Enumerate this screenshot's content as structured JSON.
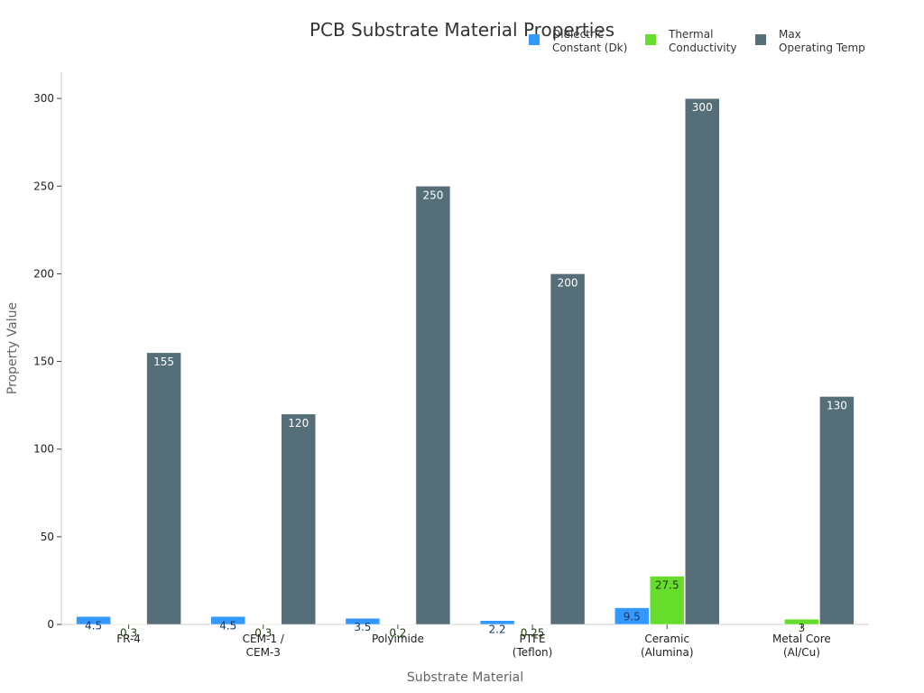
{
  "chart_data": {
    "type": "bar",
    "title": "PCB Substrate Material Properties",
    "xlabel": "Substrate Material",
    "ylabel": "Property Value",
    "ylim": [
      0,
      315
    ],
    "yticks": [
      0,
      50,
      100,
      150,
      200,
      250,
      300
    ],
    "ytick_labels": [
      "0",
      "50",
      "100",
      "150",
      "200",
      "250",
      "300"
    ],
    "grid": false,
    "legend_position": "top-right",
    "categories": [
      [
        "FR-4"
      ],
      [
        "CEM-1 /",
        "CEM-3"
      ],
      [
        "Polyimide"
      ],
      [
        "PTFE",
        "(Teflon)"
      ],
      [
        "Ceramic",
        "(Alumina)"
      ],
      [
        "Metal Core",
        "(Al/Cu)"
      ]
    ],
    "series": [
      {
        "name": [
          "Dielectric",
          "Constant (Dk)"
        ],
        "color": "#3399ff",
        "label_color": "#1a3a66",
        "values": [
          4.5,
          4.5,
          3.5,
          2.2,
          9.5,
          null
        ],
        "labels": [
          "4.5",
          "4.5",
          "3.5",
          "2.2",
          "9.5",
          ""
        ]
      },
      {
        "name": [
          "Thermal",
          "Conductivity"
        ],
        "color": "#66dd2a",
        "label_color": "#1f3d0d",
        "values": [
          0.3,
          0.3,
          0.2,
          0.25,
          27.5,
          3
        ],
        "labels": [
          "0.3",
          "0.3",
          "0.2",
          "0.25",
          "27.5",
          "3"
        ]
      },
      {
        "name": [
          "Max",
          "Operating Temp"
        ],
        "color": "#556e78",
        "label_color": "#ffffff",
        "values": [
          155,
          120,
          250,
          200,
          300,
          130
        ],
        "labels": [
          "155",
          "120",
          "250",
          "200",
          "300",
          "130"
        ]
      }
    ]
  }
}
